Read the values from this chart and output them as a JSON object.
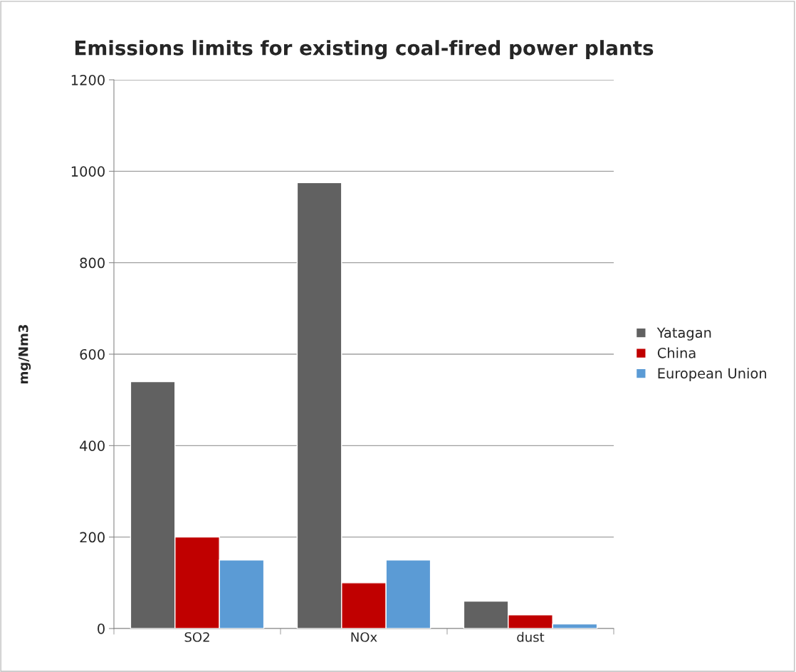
{
  "chart_data": {
    "type": "bar",
    "title": "Emissions limits for existing coal-fired power plants",
    "ylabel": "mg/Nm3",
    "categories": [
      "SO2",
      "NOx",
      "dust"
    ],
    "series": [
      {
        "name": "Yatagan",
        "color": "#616161",
        "values": [
          540,
          975,
          60
        ]
      },
      {
        "name": "China",
        "color": "#c00000",
        "values": [
          200,
          100,
          30
        ]
      },
      {
        "name": "European Union",
        "color": "#5b9bd5",
        "values": [
          150,
          150,
          10
        ]
      }
    ],
    "ylim": [
      0,
      1200
    ],
    "yticks": [
      0,
      200,
      400,
      600,
      800,
      1000,
      1200
    ],
    "grid": "y",
    "legend": "right"
  }
}
